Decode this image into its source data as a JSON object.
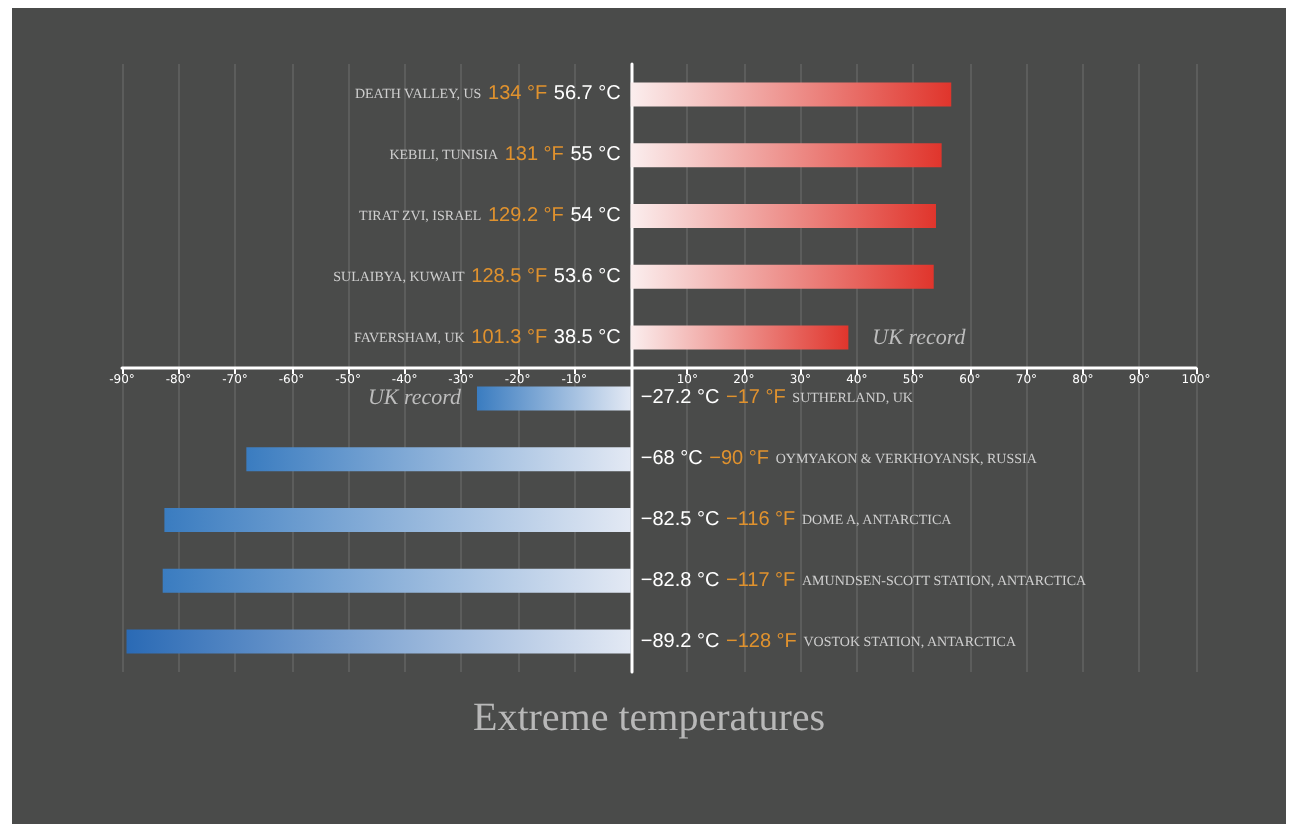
{
  "chart_data": {
    "type": "bar",
    "orientation": "horizontal",
    "title": "Extreme temperatures",
    "categories": [
      "DEATH VALLEY, US",
      "KEBILI, TUNISIA",
      "TIRAT ZVI, ISRAEL",
      "SULAIBYA, KUWAIT",
      "FAVERSHAM, UK",
      "SUTHERLAND, UK",
      "OYMYAKON & VERKHOYANSK, RUSSIA",
      "DOME A, ANTARCTICA",
      "AMUNDSEN-SCOTT STATION, ANTARCTICA",
      "VOSTOK STATION, ANTARCTICA"
    ],
    "values": [
      56.7,
      55,
      54,
      53.6,
      38.5,
      -27.2,
      -68,
      -82.5,
      -82.8,
      -89.2
    ],
    "value_labels": [
      "56.7 °C",
      "55 °C",
      "54 °C",
      "53.6 °C",
      "38.5 °C",
      "−27.2 °C",
      "−68 °C",
      "−82.5 °C",
      "−82.8 °C",
      "−89.2 °C"
    ],
    "colors": [
      "#e0352c",
      "#e0352c",
      "#e0352c",
      "#e0352c",
      "#e0352c",
      "#3a7cc0",
      "#3a7cc0",
      "#3a7cc0",
      "#3a7cc0",
      "#2a6ab5"
    ],
    "annotations": [
      "134 °F",
      "131 °F",
      "129.2 °F",
      "128.5 °F",
      "101.3 °F",
      "−17 °F",
      "−90 °F",
      "−116 °F",
      "−117 °F",
      "−128 °F",
      {
        "text": "UK record",
        "x": 38.5,
        "y": "FAVERSHAM, UK"
      },
      {
        "text": "UK record",
        "x": -27.2,
        "y": "SUTHERLAND, UK"
      }
    ],
    "xlim": [
      -90,
      100
    ],
    "xticks": [
      {
        "value": -90,
        "label": "-90°"
      },
      {
        "value": -80,
        "label": "-80°"
      },
      {
        "value": -70,
        "label": "-70°"
      },
      {
        "value": -60,
        "label": "-60°"
      },
      {
        "value": -50,
        "label": "-50°"
      },
      {
        "value": -40,
        "label": "-40°"
      },
      {
        "value": -30,
        "label": "-30°"
      },
      {
        "value": -20,
        "label": "-20°"
      },
      {
        "value": -10,
        "label": "-10°"
      },
      {
        "value": 10,
        "label": "10°"
      },
      {
        "value": 20,
        "label": "20°"
      },
      {
        "value": 30,
        "label": "30°"
      },
      {
        "value": 40,
        "label": "40°"
      },
      {
        "value": 50,
        "label": "50°"
      },
      {
        "value": 60,
        "label": "60°"
      },
      {
        "value": 70,
        "label": "70°"
      },
      {
        "value": 80,
        "label": "80°"
      },
      {
        "value": 90,
        "label": "90°"
      },
      {
        "value": 100,
        "label": "100°"
      }
    ],
    "grid": "x"
  }
}
